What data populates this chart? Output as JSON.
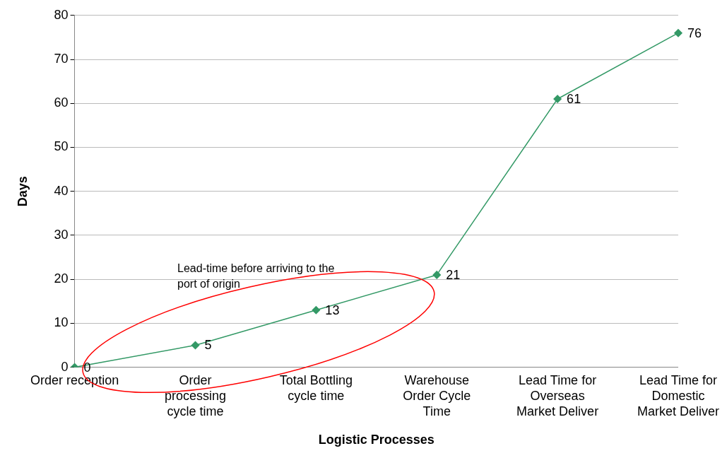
{
  "chart_data": {
    "type": "line",
    "xlabel": "Logistic Processes",
    "ylabel": "Days",
    "categories": [
      "Order reception",
      "Order processing cycle time",
      "Total Bottling cycle time",
      "Warehouse Order Cycle Time",
      "Lead Time for Overseas Market Deliver",
      "Lead Time for Domestic Market Deliver"
    ],
    "series": [
      {
        "color": "#339966",
        "values": [
          0,
          5,
          13,
          21,
          61,
          76
        ]
      }
    ],
    "ylim": [
      0,
      80
    ],
    "yticks": [
      0,
      10,
      20,
      30,
      40,
      50,
      60,
      70,
      80
    ],
    "grid": "y",
    "marker": "diamond",
    "line_style": "solid",
    "data_labels": true,
    "legend": false,
    "annotations": [
      "Lead-time before arriving to the port of origin"
    ]
  }
}
